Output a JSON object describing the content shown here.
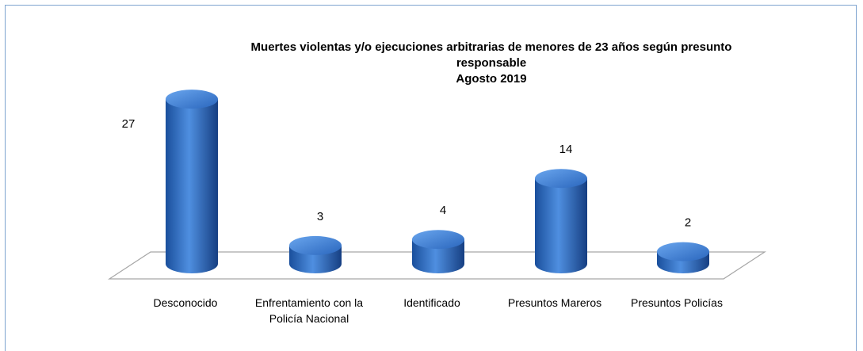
{
  "chart_data": {
    "type": "bar3d",
    "title": "Muertes violentas y/o ejecuciones arbitrarias de menores de 23 años según presunto responsable",
    "subtitle": "Agosto 2019",
    "categories": [
      "Desconocido",
      "Enfrentamiento con la Policía Nacional",
      "Identificado",
      "Presuntos Mareros",
      "Presuntos Policías"
    ],
    "values": [
      27,
      3,
      4,
      14,
      2
    ],
    "color": "#2a6cc4"
  }
}
